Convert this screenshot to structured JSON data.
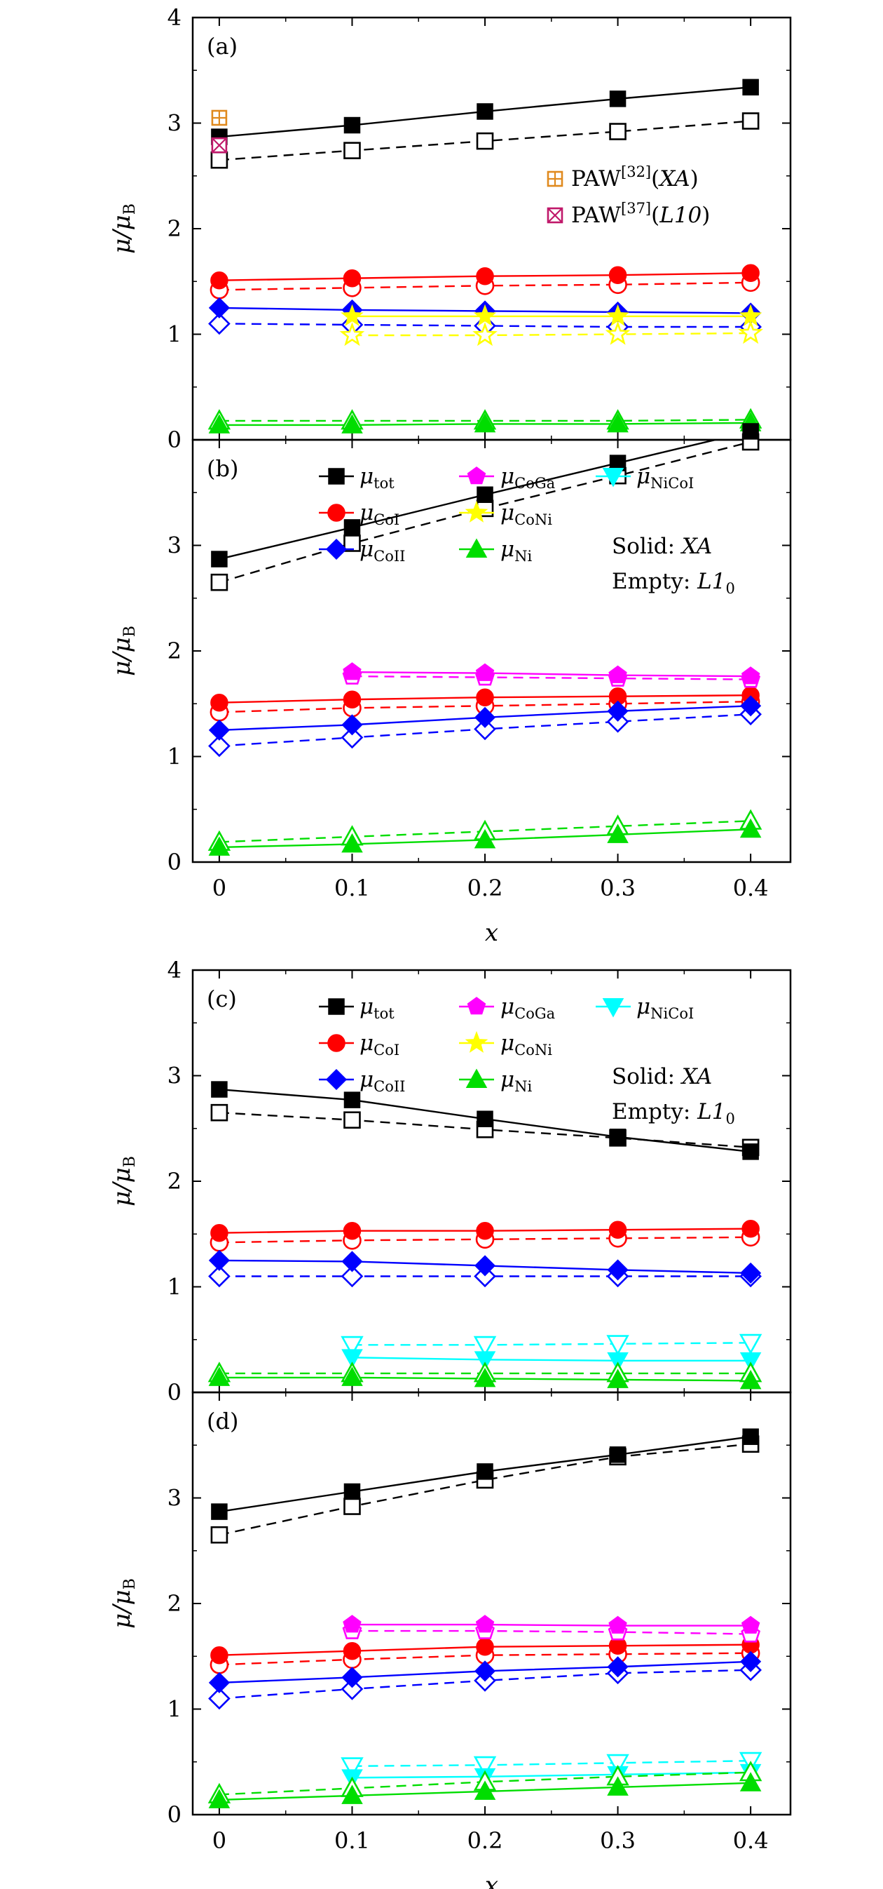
{
  "chart_data": [
    {
      "panel": "(a)",
      "type": "line",
      "x": [
        0,
        0.1,
        0.2,
        0.3,
        0.4
      ],
      "xlabel": "x",
      "ylabel": "μ/μB",
      "ylim": [
        0,
        4
      ],
      "yticks": [
        "0",
        "1",
        "2",
        "3",
        "4"
      ],
      "series": [
        {
          "key": "tot",
          "color": "#000000",
          "marker": "square",
          "solid": [
            2.87,
            2.98,
            3.11,
            3.23,
            3.34
          ],
          "empty": [
            2.65,
            2.74,
            2.83,
            2.92,
            3.02
          ]
        },
        {
          "key": "CoI",
          "color": "#ff0000",
          "marker": "circle",
          "solid": [
            1.51,
            1.53,
            1.55,
            1.56,
            1.58
          ],
          "empty": [
            1.42,
            1.44,
            1.46,
            1.47,
            1.49
          ]
        },
        {
          "key": "CoII",
          "color": "#0000ff",
          "marker": "diamond",
          "solid": [
            1.25,
            1.23,
            1.22,
            1.21,
            1.2
          ],
          "empty": [
            1.1,
            1.09,
            1.08,
            1.07,
            1.07
          ]
        },
        {
          "key": "CoNi",
          "color": "#ffff00",
          "marker": "star",
          "solid": [
            null,
            1.17,
            1.17,
            1.17,
            1.17
          ],
          "empty": [
            null,
            0.99,
            0.99,
            1.0,
            1.01
          ]
        },
        {
          "key": "Ni",
          "color": "#00dd00",
          "marker": "triangle-up",
          "solid": [
            0.14,
            0.14,
            0.15,
            0.15,
            0.16
          ],
          "empty": [
            0.18,
            0.18,
            0.18,
            0.18,
            0.19
          ]
        }
      ],
      "references": [
        {
          "label": "PAW",
          "sup": "[32]",
          "suffix_italic": "XA",
          "color": "#e08a1e",
          "marker": "boxplus",
          "x": 0,
          "y": 3.05
        },
        {
          "label": "PAW",
          "sup": "[37]",
          "suffix_italic": "L10",
          "color": "#c0186a",
          "marker": "boxtimes",
          "x": 0,
          "y": 2.79
        }
      ]
    },
    {
      "panel": "(b)",
      "type": "line",
      "x": [
        0,
        0.1,
        0.2,
        0.3,
        0.4
      ],
      "xlabel": "x",
      "ylabel": "μ/μB",
      "ylim": [
        0,
        4
      ],
      "yticks": [
        "0",
        "1",
        "2",
        "3"
      ],
      "xticks": [
        "0",
        "0.1",
        "0.2",
        "0.3",
        "0.4"
      ],
      "series": [
        {
          "key": "tot",
          "color": "#000000",
          "marker": "square",
          "solid": [
            2.87,
            3.17,
            3.48,
            3.78,
            4.08
          ],
          "empty": [
            2.65,
            3.02,
            3.35,
            3.66,
            3.98
          ]
        },
        {
          "key": "CoI",
          "color": "#ff0000",
          "marker": "circle",
          "solid": [
            1.51,
            1.54,
            1.56,
            1.57,
            1.58
          ],
          "empty": [
            1.42,
            1.46,
            1.48,
            1.5,
            1.52
          ]
        },
        {
          "key": "CoII",
          "color": "#0000ff",
          "marker": "diamond",
          "solid": [
            1.25,
            1.3,
            1.37,
            1.43,
            1.48
          ],
          "empty": [
            1.1,
            1.18,
            1.26,
            1.33,
            1.4
          ]
        },
        {
          "key": "CoGa",
          "color": "#ff00ff",
          "marker": "pentagon",
          "solid": [
            null,
            1.8,
            1.79,
            1.77,
            1.76
          ],
          "empty": [
            null,
            1.76,
            1.75,
            1.74,
            1.73
          ]
        },
        {
          "key": "Ni",
          "color": "#00dd00",
          "marker": "triangle-up",
          "solid": [
            0.14,
            0.17,
            0.21,
            0.26,
            0.31
          ],
          "empty": [
            0.19,
            0.24,
            0.29,
            0.34,
            0.39
          ]
        }
      ],
      "legend": {
        "entries": [
          {
            "sym": "μ",
            "sub": "tot",
            "color": "#000000",
            "marker": "square"
          },
          {
            "sym": "μ",
            "sub": "CoI",
            "color": "#ff0000",
            "marker": "circle"
          },
          {
            "sym": "μ",
            "sub": "CoII",
            "color": "#0000ff",
            "marker": "diamond"
          },
          {
            "sym": "μ",
            "sub": "CoGa",
            "color": "#ff00ff",
            "marker": "pentagon"
          },
          {
            "sym": "μ",
            "sub": "CoNi",
            "color": "#ffff00",
            "marker": "star"
          },
          {
            "sym": "μ",
            "sub": "Ni",
            "color": "#00dd00",
            "marker": "triangle-up"
          },
          {
            "sym": "μ",
            "sub": "NiCoI",
            "color": "#00ffff",
            "marker": "triangle-down"
          }
        ],
        "note_solid": "Solid: ",
        "note_solid_italic": "XA",
        "note_empty": "Empty: ",
        "note_empty_italic": "L1",
        "note_empty_sub": "0"
      }
    },
    {
      "panel": "(c)",
      "type": "line",
      "x": [
        0,
        0.1,
        0.2,
        0.3,
        0.4
      ],
      "xlabel": "x",
      "ylabel": "μ/μB",
      "ylim": [
        0,
        4
      ],
      "yticks": [
        "0",
        "1",
        "2",
        "3",
        "4"
      ],
      "series": [
        {
          "key": "tot",
          "color": "#000000",
          "marker": "square",
          "solid": [
            2.87,
            2.77,
            2.59,
            2.42,
            2.28
          ],
          "empty": [
            2.65,
            2.58,
            2.49,
            2.41,
            2.32
          ]
        },
        {
          "key": "CoI",
          "color": "#ff0000",
          "marker": "circle",
          "solid": [
            1.51,
            1.53,
            1.53,
            1.54,
            1.55
          ],
          "empty": [
            1.42,
            1.44,
            1.45,
            1.46,
            1.47
          ]
        },
        {
          "key": "CoII",
          "color": "#0000ff",
          "marker": "diamond",
          "solid": [
            1.25,
            1.24,
            1.2,
            1.16,
            1.13
          ],
          "empty": [
            1.1,
            1.1,
            1.1,
            1.1,
            1.1
          ]
        },
        {
          "key": "NiCoI",
          "color": "#00ffff",
          "marker": "triangle-down",
          "solid": [
            null,
            0.33,
            0.31,
            0.3,
            0.3
          ],
          "empty": [
            null,
            0.45,
            0.45,
            0.46,
            0.47
          ]
        },
        {
          "key": "Ni",
          "color": "#00dd00",
          "marker": "triangle-up",
          "solid": [
            0.14,
            0.14,
            0.13,
            0.12,
            0.11
          ],
          "empty": [
            0.18,
            0.18,
            0.18,
            0.18,
            0.18
          ]
        }
      ],
      "legend": {
        "entries": [
          {
            "sym": "μ",
            "sub": "tot",
            "color": "#000000",
            "marker": "square"
          },
          {
            "sym": "μ",
            "sub": "CoI",
            "color": "#ff0000",
            "marker": "circle"
          },
          {
            "sym": "μ",
            "sub": "CoII",
            "color": "#0000ff",
            "marker": "diamond"
          },
          {
            "sym": "μ",
            "sub": "CoGa",
            "color": "#ff00ff",
            "marker": "pentagon"
          },
          {
            "sym": "μ",
            "sub": "CoNi",
            "color": "#ffff00",
            "marker": "star"
          },
          {
            "sym": "μ",
            "sub": "Ni",
            "color": "#00dd00",
            "marker": "triangle-up"
          },
          {
            "sym": "μ",
            "sub": "NiCoI",
            "color": "#00ffff",
            "marker": "triangle-down"
          }
        ],
        "note_solid": "Solid: ",
        "note_solid_italic": "XA",
        "note_empty": "Empty: ",
        "note_empty_italic": "L1",
        "note_empty_sub": "0"
      }
    },
    {
      "panel": "(d)",
      "type": "line",
      "x": [
        0,
        0.1,
        0.2,
        0.3,
        0.4
      ],
      "xlabel": "x",
      "ylabel": "μ/μB",
      "ylim": [
        0,
        4
      ],
      "yticks": [
        "0",
        "1",
        "2",
        "3"
      ],
      "xticks": [
        "0",
        "0.1",
        "0.2",
        "0.3",
        "0.4"
      ],
      "series": [
        {
          "key": "tot",
          "color": "#000000",
          "marker": "square",
          "solid": [
            2.87,
            3.06,
            3.25,
            3.41,
            3.58
          ],
          "empty": [
            2.65,
            2.92,
            3.17,
            3.39,
            3.51
          ]
        },
        {
          "key": "CoI",
          "color": "#ff0000",
          "marker": "circle",
          "solid": [
            1.51,
            1.55,
            1.59,
            1.6,
            1.61
          ],
          "empty": [
            1.42,
            1.47,
            1.51,
            1.52,
            1.53
          ]
        },
        {
          "key": "CoII",
          "color": "#0000ff",
          "marker": "diamond",
          "solid": [
            1.25,
            1.3,
            1.36,
            1.4,
            1.45
          ],
          "empty": [
            1.1,
            1.19,
            1.27,
            1.34,
            1.37
          ]
        },
        {
          "key": "CoGa",
          "color": "#ff00ff",
          "marker": "pentagon",
          "solid": [
            null,
            1.8,
            1.8,
            1.79,
            1.79
          ],
          "empty": [
            null,
            1.74,
            1.74,
            1.73,
            1.71
          ]
        },
        {
          "key": "NiCoI",
          "color": "#00ffff",
          "marker": "triangle-down",
          "solid": [
            null,
            0.35,
            0.36,
            0.38,
            0.4
          ],
          "empty": [
            null,
            0.46,
            0.47,
            0.49,
            0.51
          ]
        },
        {
          "key": "Ni",
          "color": "#00dd00",
          "marker": "triangle-up",
          "solid": [
            0.14,
            0.18,
            0.22,
            0.26,
            0.3
          ],
          "empty": [
            0.19,
            0.25,
            0.31,
            0.36,
            0.4
          ]
        }
      ]
    }
  ]
}
